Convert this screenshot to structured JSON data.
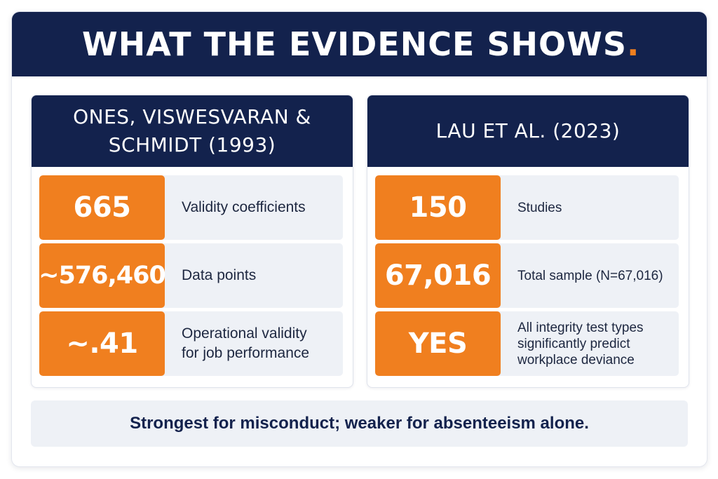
{
  "header": {
    "title": "WHAT THE EVIDENCE SHOWS",
    "title_dot": ".",
    "accent_color": "#f07f1f",
    "navy_color": "#13224d"
  },
  "left_panel": {
    "title": "ONES, VISWESVARAN &\nSCHMIDT (1993)",
    "rows": [
      {
        "stat": "665",
        "label": "Validity coefficients"
      },
      {
        "stat": "~576,460",
        "label": "Data points"
      },
      {
        "stat": "~.41",
        "label": "Operational validity\nfor job performance"
      }
    ]
  },
  "right_panel": {
    "title": "LAU ET AL. (2023)",
    "rows": [
      {
        "stat": "150",
        "label": "Studies"
      },
      {
        "stat": "67,016",
        "label": "Total sample (N=67,016)"
      },
      {
        "stat": "YES",
        "label": "All integrity test types\nsignificantly predict\nworkplace deviance"
      }
    ]
  },
  "footer": {
    "text": "Strongest for misconduct; weaker for absenteeism alone."
  }
}
